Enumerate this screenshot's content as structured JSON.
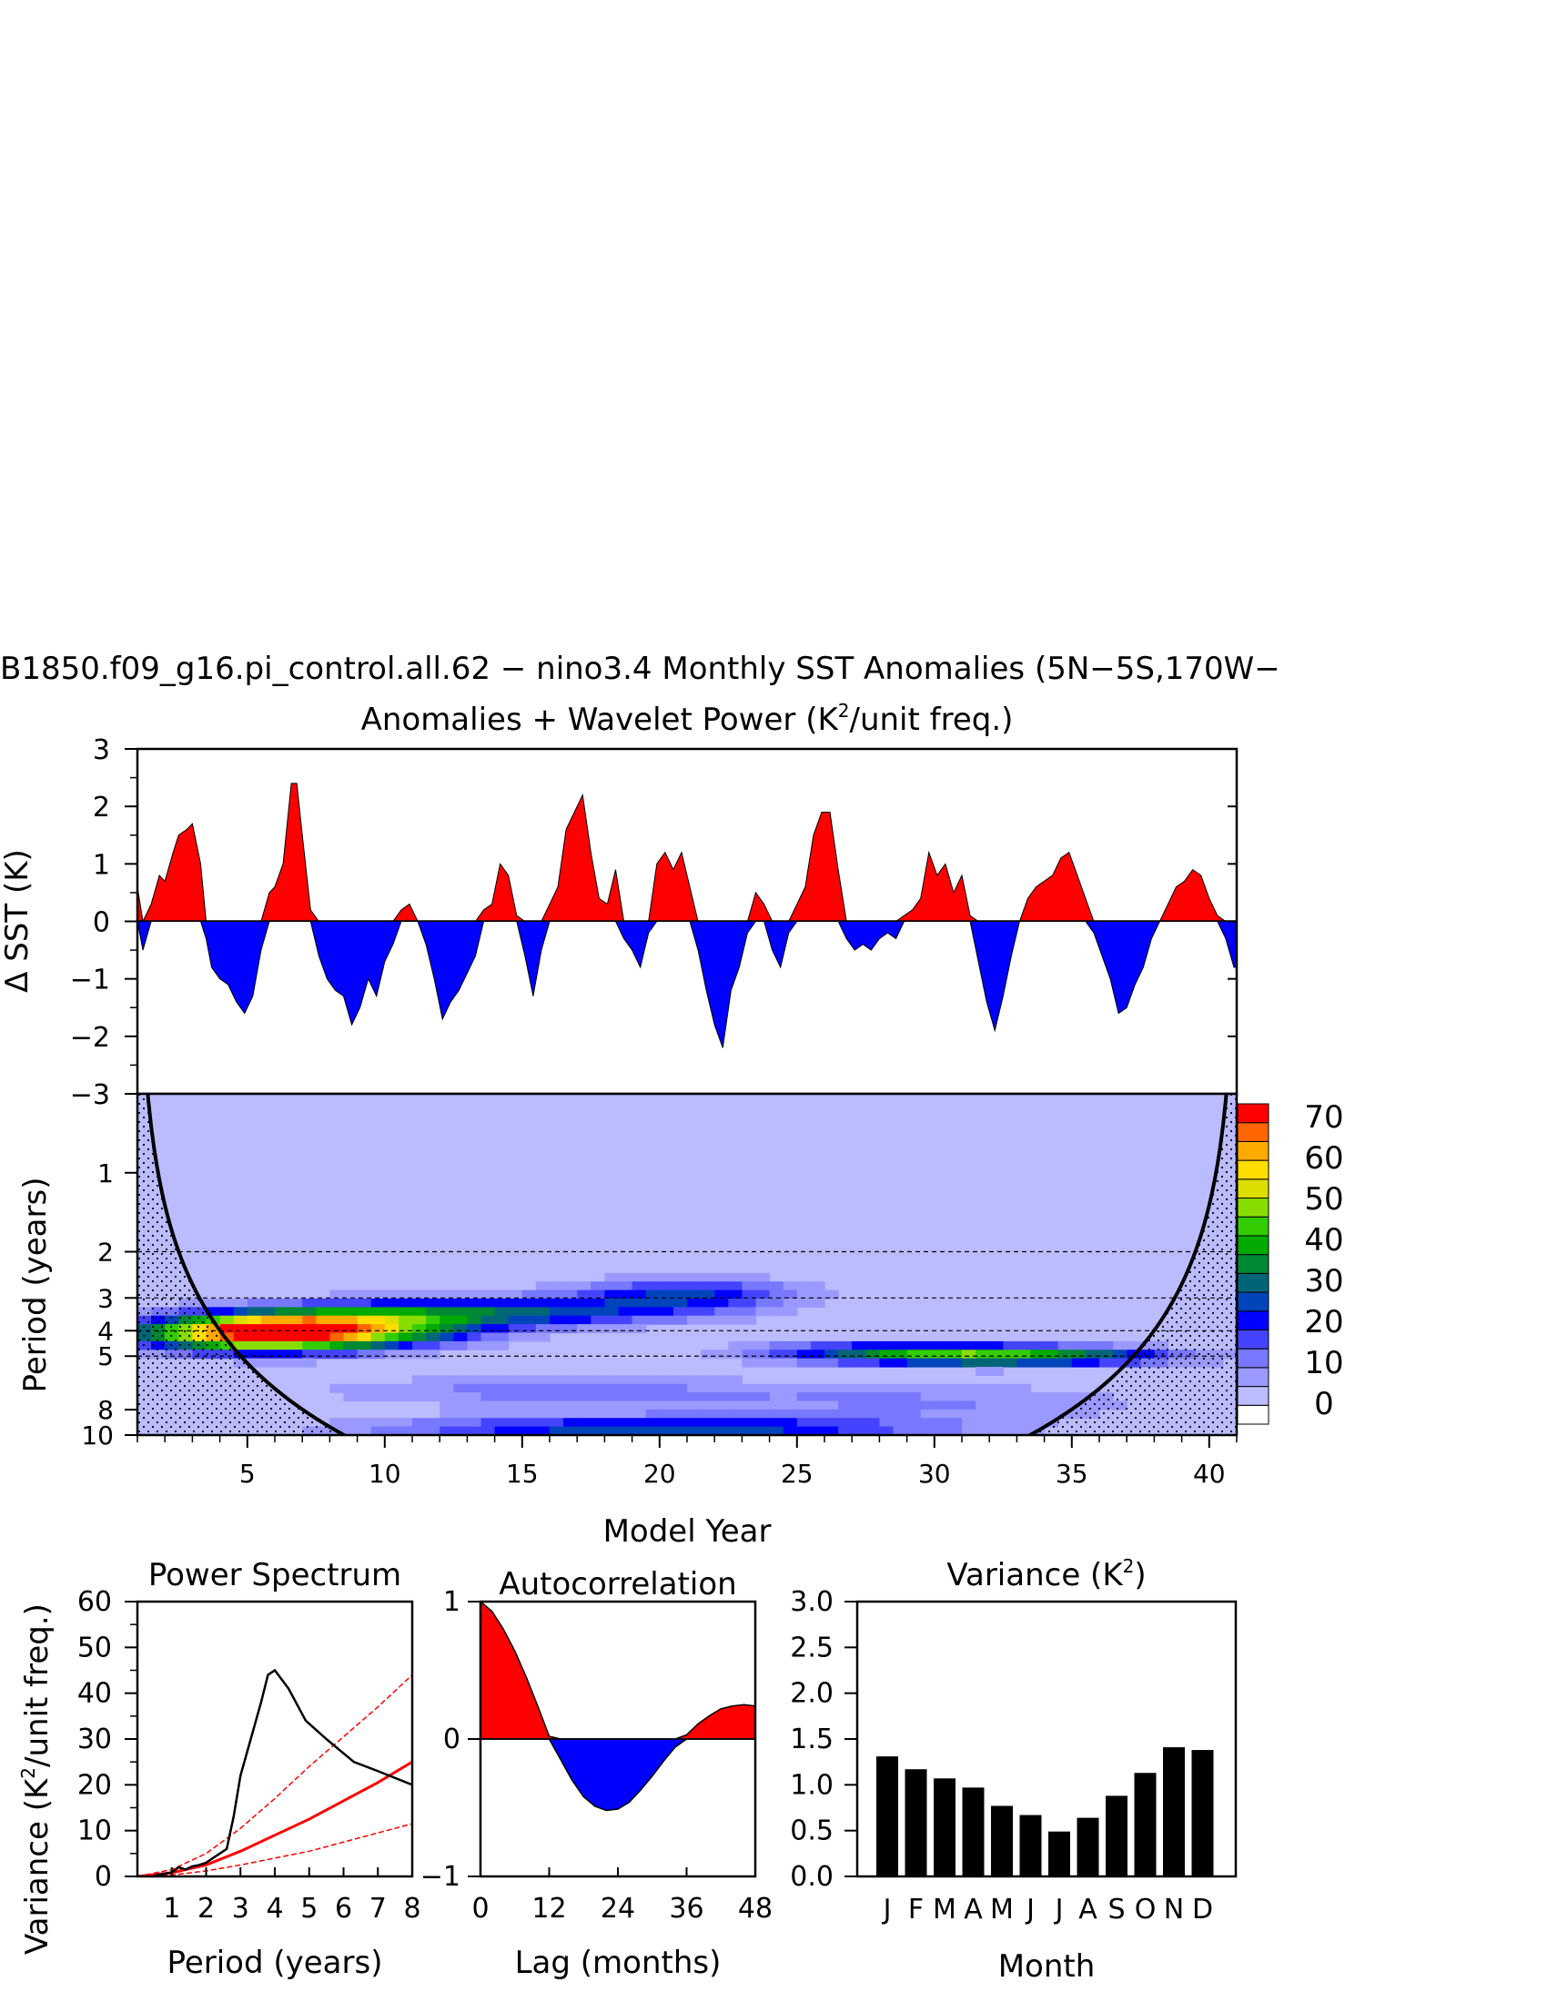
{
  "title": {
    "line1": "B1850.f09_g16.pi_control.all.62 − nino3.4 Monthly SST Anomalies (5N−5S,170W−",
    "line2_pre": "Anomalies + Wavelet Power (K",
    "line2_sup": "2",
    "line2_post": "/unit freq.)"
  },
  "colors": {
    "positive": "#ff0000",
    "negative": "#0000ff",
    "background_power": "#bbbbff",
    "contour_levels": [
      "#ffffff",
      "#bbbbff",
      "#9999ff",
      "#7777ff",
      "#4444ff",
      "#0000ff",
      "#0044bb",
      "#006677",
      "#008833",
      "#00aa00",
      "#33cc00",
      "#88dd00",
      "#dddd00",
      "#ffdd00",
      "#ffaa00",
      "#ff6600",
      "#ff0000"
    ]
  },
  "chart_data": [
    {
      "id": "anomalies",
      "type": "area",
      "ylabel": "Δ SST (K)",
      "ylim": [
        -3,
        3
      ],
      "yticks": [
        "3",
        "2",
        "1",
        "0",
        "−1",
        "−2",
        "−3"
      ],
      "xlim": [
        1,
        41
      ],
      "x": [
        1.0,
        1.2,
        1.5,
        1.8,
        2.0,
        2.3,
        2.5,
        2.8,
        3.0,
        3.3,
        3.5,
        3.7,
        4.0,
        4.3,
        4.6,
        4.9,
        5.2,
        5.5,
        5.8,
        6.0,
        6.3,
        6.6,
        6.8,
        7.0,
        7.3,
        7.6,
        7.9,
        8.2,
        8.5,
        8.8,
        9.1,
        9.4,
        9.7,
        10.0,
        10.3,
        10.6,
        10.9,
        11.2,
        11.5,
        11.8,
        12.1,
        12.4,
        12.7,
        13.0,
        13.3,
        13.6,
        13.9,
        14.2,
        14.5,
        14.8,
        15.1,
        15.4,
        15.7,
        16.0,
        16.3,
        16.6,
        16.9,
        17.2,
        17.5,
        17.8,
        18.1,
        18.4,
        18.7,
        19.0,
        19.3,
        19.6,
        19.9,
        20.2,
        20.5,
        20.8,
        21.1,
        21.4,
        21.7,
        22.0,
        22.3,
        22.6,
        22.9,
        23.2,
        23.5,
        23.8,
        24.1,
        24.4,
        24.7,
        25.0,
        25.3,
        25.6,
        25.9,
        26.2,
        26.5,
        26.8,
        27.1,
        27.4,
        27.7,
        28.0,
        28.3,
        28.6,
        28.9,
        29.2,
        29.5,
        29.8,
        30.1,
        30.4,
        30.7,
        31.0,
        31.3,
        31.6,
        31.9,
        32.2,
        32.5,
        32.8,
        33.1,
        33.4,
        33.7,
        34.0,
        34.3,
        34.6,
        34.9,
        35.2,
        35.5,
        35.8,
        36.1,
        36.4,
        36.7,
        37.0,
        37.3,
        37.6,
        37.9,
        38.2,
        38.5,
        38.8,
        39.1,
        39.4,
        39.7,
        40.0,
        40.3,
        40.6,
        40.9,
        41.0
      ],
      "y": [
        0.6,
        -0.5,
        0.3,
        0.8,
        0.7,
        1.2,
        1.5,
        1.6,
        1.7,
        1.0,
        -0.3,
        -0.8,
        -1.0,
        -1.1,
        -1.4,
        -1.6,
        -1.3,
        -0.5,
        0.5,
        0.6,
        1.0,
        2.4,
        2.4,
        1.5,
        0.2,
        -0.6,
        -1.0,
        -1.2,
        -1.3,
        -1.8,
        -1.5,
        -1.0,
        -1.3,
        -0.7,
        -0.4,
        0.2,
        0.3,
        0.0,
        -0.4,
        -1.0,
        -1.7,
        -1.4,
        -1.2,
        -0.9,
        -0.6,
        0.2,
        0.3,
        1.0,
        0.8,
        0.1,
        -0.6,
        -1.3,
        -0.5,
        0.3,
        0.6,
        1.6,
        1.9,
        2.2,
        1.2,
        0.4,
        0.3,
        0.9,
        -0.3,
        -0.5,
        -0.8,
        -0.2,
        1.0,
        1.2,
        0.9,
        1.2,
        0.6,
        -0.5,
        -1.2,
        -1.8,
        -2.2,
        -1.2,
        -0.8,
        -0.2,
        0.5,
        0.3,
        -0.5,
        -0.8,
        -0.2,
        0.3,
        0.6,
        1.5,
        1.9,
        1.9,
        0.9,
        -0.3,
        -0.5,
        -0.4,
        -0.5,
        -0.3,
        -0.2,
        -0.3,
        0.1,
        0.2,
        0.4,
        1.2,
        0.8,
        1.0,
        0.5,
        0.8,
        0.1,
        -0.7,
        -1.4,
        -1.9,
        -1.3,
        -0.6,
        0.0,
        0.4,
        0.6,
        0.7,
        0.8,
        1.1,
        1.2,
        0.8,
        0.4,
        -0.2,
        -0.6,
        -1.0,
        -1.6,
        -1.5,
        -1.1,
        -0.8,
        -0.3,
        0.0,
        0.3,
        0.6,
        0.7,
        0.9,
        0.8,
        0.4,
        0.1,
        -0.3,
        -0.8,
        -0.8
      ]
    },
    {
      "id": "wavelet",
      "type": "heatmap",
      "xlabel": "Model Year",
      "ylabel": "Period (years)",
      "xlim": [
        1,
        41
      ],
      "xticks": [
        5,
        10,
        15,
        20,
        25,
        30,
        35,
        40
      ],
      "yticks": [
        "1",
        "2",
        "3",
        "4",
        "5",
        "8",
        "10"
      ],
      "ytick_values": [
        1,
        2,
        3,
        4,
        5,
        8,
        10
      ],
      "ylim_period": [
        0.5,
        10
      ],
      "log_period_axis": true,
      "colorbar_labels": [
        "70",
        "60",
        "50",
        "40",
        "30",
        "20",
        "10",
        "0"
      ],
      "colorbar_levels": [
        0,
        5,
        10,
        15,
        20,
        25,
        30,
        35,
        40,
        45,
        50,
        55,
        60,
        65,
        70,
        75
      ],
      "dashed_periods": [
        2,
        3,
        4,
        5
      ],
      "blobs": [
        {
          "year": 5.5,
          "period": 4.1,
          "amp": 72,
          "sx": 3.2,
          "sy": 0.11
        },
        {
          "year": 9.0,
          "period": 3.8,
          "amp": 38,
          "sx": 3.5,
          "sy": 0.12
        },
        {
          "year": 15.0,
          "period": 3.4,
          "amp": 26,
          "sx": 4.5,
          "sy": 0.09
        },
        {
          "year": 21.0,
          "period": 2.9,
          "amp": 24,
          "sx": 3.0,
          "sy": 0.1
        },
        {
          "year": 33.0,
          "period": 5.0,
          "amp": 42,
          "sx": 4.0,
          "sy": 0.06
        },
        {
          "year": 28.0,
          "period": 4.8,
          "amp": 22,
          "sx": 3.5,
          "sy": 0.07
        },
        {
          "year": 20.0,
          "period": 9.5,
          "amp": 30,
          "sx": 7.0,
          "sy": 0.08
        },
        {
          "year": 16.0,
          "period": 6.8,
          "amp": 12,
          "sx": 6.0,
          "sy": 0.1
        },
        {
          "year": 30.0,
          "period": 7.5,
          "amp": 10,
          "sx": 6.0,
          "sy": 0.12
        }
      ]
    },
    {
      "id": "power_spectrum",
      "type": "line",
      "title": "Power Spectrum",
      "xlabel": "Period (years)",
      "ylabel_pre": "Variance (K",
      "ylabel_sup": "2",
      "ylabel_post": "/unit freq.)",
      "xlim": [
        0,
        8
      ],
      "xticks": [
        "1",
        "2",
        "3",
        "4",
        "5",
        "6",
        "7",
        "8"
      ],
      "ylim": [
        0,
        60
      ],
      "yticks": [
        "0",
        "10",
        "20",
        "30",
        "40",
        "50",
        "60"
      ],
      "series": [
        {
          "role": "spectrum",
          "x": [
            0.5,
            0.8,
            1.0,
            1.2,
            1.4,
            1.6,
            1.8,
            2.0,
            2.3,
            2.6,
            2.8,
            3.0,
            3.3,
            3.6,
            3.8,
            4.0,
            4.4,
            4.9,
            5.5,
            6.3,
            7.0,
            8.0
          ],
          "y": [
            0.2,
            0.6,
            0.9,
            2.0,
            1.5,
            2.2,
            2.5,
            3.0,
            4.5,
            6.0,
            13,
            22,
            30,
            38,
            44,
            45,
            41,
            34,
            30,
            25,
            23,
            20
          ]
        },
        {
          "role": "red_noise",
          "x": [
            0,
            1,
            2,
            3,
            4,
            5,
            6,
            7,
            8
          ],
          "y": [
            0,
            0.8,
            2.5,
            5.5,
            9,
            12.5,
            16.5,
            20.5,
            25
          ]
        },
        {
          "role": "upper_ci",
          "x": [
            0,
            1,
            2,
            3,
            4,
            5,
            6,
            7,
            8
          ],
          "y": [
            0,
            1.5,
            5,
            10.5,
            17,
            24,
            30.5,
            37,
            44
          ]
        },
        {
          "role": "lower_ci",
          "x": [
            0,
            1,
            2,
            3,
            4,
            5,
            6,
            7,
            8
          ],
          "y": [
            0,
            0.3,
            1.2,
            2.5,
            4,
            5.5,
            7.5,
            9.5,
            11.5
          ]
        }
      ]
    },
    {
      "id": "autocorrelation",
      "type": "area",
      "title": "Autocorrelation",
      "xlabel": "Lag (months)",
      "xlim": [
        0,
        48
      ],
      "xticks": [
        "0",
        "12",
        "24",
        "36",
        "48"
      ],
      "ylim": [
        -1,
        1
      ],
      "yticks": [
        "1",
        "0",
        "−1"
      ],
      "x": [
        0,
        2,
        4,
        6,
        8,
        10,
        12,
        14,
        16,
        18,
        20,
        22,
        24,
        26,
        28,
        30,
        32,
        34,
        36,
        38,
        40,
        42,
        44,
        46,
        48
      ],
      "y": [
        1.0,
        0.93,
        0.8,
        0.64,
        0.45,
        0.24,
        0.02,
        -0.15,
        -0.3,
        -0.42,
        -0.49,
        -0.52,
        -0.51,
        -0.46,
        -0.37,
        -0.27,
        -0.16,
        -0.06,
        0.03,
        0.11,
        0.17,
        0.22,
        0.24,
        0.25,
        0.24
      ]
    },
    {
      "id": "variance_by_month",
      "type": "bar",
      "title_pre": "Variance (K",
      "title_sup": "2",
      "title_post": ")",
      "xlabel": "Month",
      "categories": [
        "J",
        "F",
        "M",
        "A",
        "M",
        "J",
        "J",
        "A",
        "S",
        "O",
        "N",
        "D"
      ],
      "values": [
        1.31,
        1.17,
        1.07,
        0.97,
        0.77,
        0.67,
        0.49,
        0.64,
        0.88,
        1.13,
        1.41,
        1.38
      ],
      "ylim": [
        0,
        3
      ],
      "yticks": [
        "3.0",
        "2.5",
        "2.0",
        "1.5",
        "1.0",
        "0.5",
        "0.0"
      ]
    }
  ]
}
